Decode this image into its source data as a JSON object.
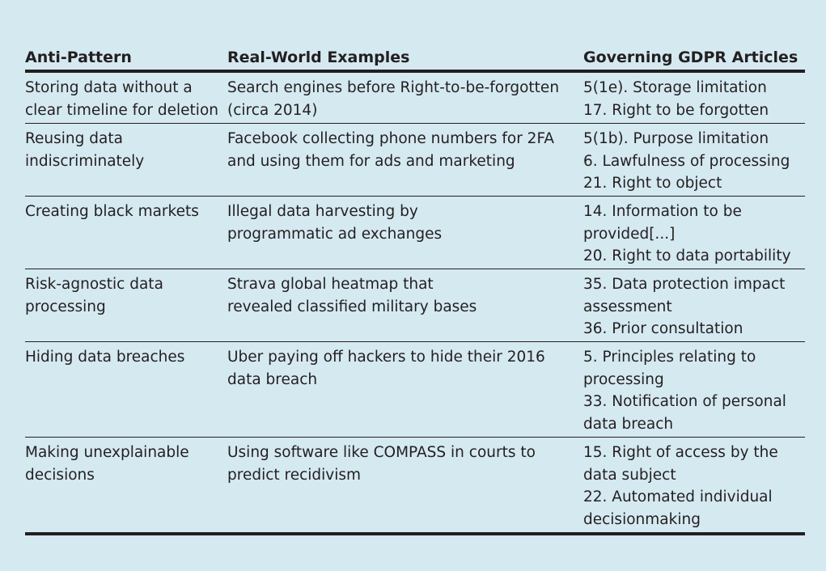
{
  "table": {
    "headers": [
      "Anti-Pattern",
      "Real-World Examples",
      "Governing GDPR Articles"
    ],
    "rows": [
      {
        "anti_pattern": [
          "Storing data without a",
          "clear timeline for deletion"
        ],
        "example": [
          "Search engines before Right-to-be-forgotten",
          "(circa 2014)"
        ],
        "articles": [
          "5(1e). Storage limitation",
          "17. Right to be forgotten"
        ]
      },
      {
        "anti_pattern": [
          "Reusing data",
          "indiscriminately"
        ],
        "example": [
          "Facebook collecting phone numbers for 2FA",
          "and using them for ads and marketing"
        ],
        "articles": [
          "5(1b). Purpose limitation",
          "6. Lawfulness of processing",
          "21. Right to object"
        ]
      },
      {
        "anti_pattern": [
          "Creating black markets"
        ],
        "example": [
          "Illegal data harvesting by",
          "programmatic ad exchanges"
        ],
        "articles": [
          "14. Information to be",
          "provided[...]",
          "20. Right to data portability"
        ]
      },
      {
        "anti_pattern": [
          "Risk-agnostic data",
          "processing"
        ],
        "example": [
          "Strava global heatmap that",
          "revealed classified military bases"
        ],
        "articles": [
          "35. Data protection impact",
          "assessment",
          "36. Prior consultation"
        ]
      },
      {
        "anti_pattern": [
          "Hiding data breaches"
        ],
        "example": [
          "Uber paying off hackers to hide their 2016",
          "data breach"
        ],
        "articles": [
          "5. Principles relating to",
          "processing",
          "33. Notification of personal",
          "data breach"
        ]
      },
      {
        "anti_pattern": [
          "Making unexplainable",
          "decisions"
        ],
        "example": [
          "Using software like COMPASS in courts to",
          "predict recidivism"
        ],
        "articles": [
          "15. Right of access by the",
          "data subject",
          "22. Automated individual",
          "decisionmaking"
        ]
      }
    ]
  }
}
